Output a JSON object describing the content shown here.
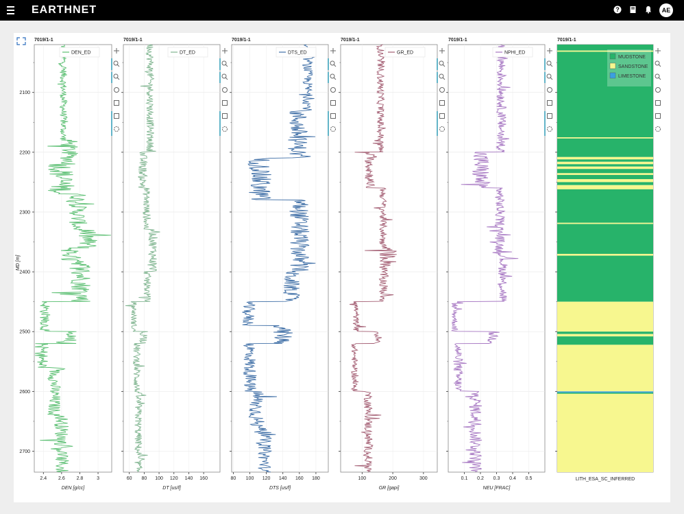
{
  "app": {
    "brand": "EARTHNET",
    "avatar_initials": "AE",
    "icons": [
      "menu-icon",
      "help-icon",
      "book-icon",
      "bell-icon"
    ]
  },
  "colors": {
    "den": "#5bbf72",
    "dt": "#7fb48f",
    "dts": "#3e6ea6",
    "gr": "#a35d72",
    "nphi": "#a676c2",
    "mudstone": "#27b36a",
    "sandstone": "#f7f78f",
    "limestone": "#3aa0e0",
    "toolbar_accent": "#2d9bb5"
  },
  "chart_data": [
    {
      "type": "line",
      "well": "7019/1-1",
      "series": [
        {
          "name": "DEN_ED"
        }
      ],
      "xlabel": "DEN [g/cc]",
      "ylabel": "MD [m]",
      "xlim": [
        2.3,
        3.15
      ],
      "xticks": [
        "2.4",
        "2.6",
        "2.8",
        "3"
      ],
      "ylim": [
        2020,
        2735
      ],
      "yticks": [
        "2100",
        "2200",
        "2300",
        "2400",
        "2500",
        "2600",
        "2700"
      ],
      "zones": [
        [
          2020,
          2180,
          2.62,
          0.04
        ],
        [
          2180,
          2220,
          2.68,
          0.1
        ],
        [
          2220,
          2270,
          2.6,
          0.15
        ],
        [
          2270,
          2330,
          2.78,
          0.1
        ],
        [
          2330,
          2360,
          2.88,
          0.12
        ],
        [
          2360,
          2380,
          2.7,
          0.12
        ],
        [
          2380,
          2450,
          2.82,
          0.12
        ],
        [
          2450,
          2500,
          2.42,
          0.06
        ],
        [
          2500,
          2520,
          2.65,
          0.12
        ],
        [
          2520,
          2560,
          2.38,
          0.08
        ],
        [
          2560,
          2640,
          2.52,
          0.07
        ],
        [
          2640,
          2735,
          2.6,
          0.08
        ]
      ]
    },
    {
      "type": "line",
      "well": "7019/1-1",
      "series": [
        {
          "name": "DT_ED"
        }
      ],
      "xlabel": "DT [us/f]",
      "ylabel": "",
      "xlim": [
        52,
        182
      ],
      "xticks": [
        "60",
        "80",
        "100",
        "120",
        "140",
        "160"
      ],
      "ylim": [
        2020,
        2735
      ],
      "zones": [
        [
          2020,
          2200,
          88,
          5
        ],
        [
          2200,
          2260,
          78,
          6
        ],
        [
          2260,
          2330,
          83,
          5
        ],
        [
          2330,
          2400,
          92,
          6
        ],
        [
          2400,
          2450,
          84,
          5
        ],
        [
          2450,
          2500,
          66,
          4
        ],
        [
          2500,
          2520,
          80,
          6
        ],
        [
          2520,
          2600,
          70,
          5
        ],
        [
          2600,
          2735,
          72,
          5
        ]
      ]
    },
    {
      "type": "line",
      "well": "7019/1-1",
      "series": [
        {
          "name": "DTS_ED"
        }
      ],
      "xlabel": "DTS [us/f]",
      "ylabel": "",
      "xlim": [
        78,
        195
      ],
      "xticks": [
        "80",
        "100",
        "120",
        "140",
        "160",
        "180"
      ],
      "ylim": [
        2020,
        2735
      ],
      "zones": [
        [
          2020,
          2130,
          170,
          6
        ],
        [
          2130,
          2210,
          158,
          12
        ],
        [
          2210,
          2280,
          112,
          14
        ],
        [
          2280,
          2400,
          160,
          12
        ],
        [
          2400,
          2450,
          150,
          10
        ],
        [
          2450,
          2490,
          98,
          8
        ],
        [
          2490,
          2520,
          140,
          12
        ],
        [
          2520,
          2600,
          100,
          8
        ],
        [
          2600,
          2660,
          108,
          10
        ],
        [
          2660,
          2735,
          118,
          8
        ]
      ]
    },
    {
      "type": "line",
      "well": "7019/1-1",
      "series": [
        {
          "name": "GR_ED"
        }
      ],
      "xlabel": "GR [gapi]",
      "ylabel": "",
      "xlim": [
        30,
        345
      ],
      "xticks": [
        "100",
        "200",
        "300"
      ],
      "ylim": [
        2020,
        2735
      ],
      "zones": [
        [
          2020,
          2200,
          160,
          12
        ],
        [
          2200,
          2260,
          125,
          16
        ],
        [
          2260,
          2360,
          168,
          12
        ],
        [
          2360,
          2390,
          185,
          30
        ],
        [
          2390,
          2450,
          170,
          15
        ],
        [
          2450,
          2500,
          80,
          10
        ],
        [
          2500,
          2520,
          150,
          15
        ],
        [
          2520,
          2600,
          75,
          10
        ],
        [
          2600,
          2735,
          120,
          14
        ]
      ]
    },
    {
      "type": "line",
      "well": "7019/1-1",
      "series": [
        {
          "name": "NPHI_ED"
        }
      ],
      "xlabel": "NEU [FRAC]",
      "ylabel": "",
      "xlim": [
        0,
        0.6
      ],
      "xticks": [
        "0.1",
        "0.2",
        "0.3",
        "0.4",
        "0.5"
      ],
      "ylim": [
        2020,
        2735
      ],
      "zones": [
        [
          2020,
          2200,
          0.33,
          0.03
        ],
        [
          2200,
          2260,
          0.2,
          0.06
        ],
        [
          2260,
          2370,
          0.32,
          0.03
        ],
        [
          2370,
          2450,
          0.34,
          0.03
        ],
        [
          2450,
          2500,
          0.04,
          0.02
        ],
        [
          2500,
          2520,
          0.28,
          0.04
        ],
        [
          2520,
          2600,
          0.06,
          0.03
        ],
        [
          2600,
          2735,
          0.17,
          0.04
        ]
      ]
    },
    {
      "type": "heatmap",
      "well": "7019/1-1",
      "xlabel": "LITH_ESA_SC_INFERRED",
      "ylabel": "",
      "ylim": [
        2020,
        2735
      ],
      "legend": [
        "MUDSTONE",
        "SANDSTONE",
        "LIMESTONE"
      ],
      "intervals": [
        [
          2020,
          2030,
          "M"
        ],
        [
          2030,
          2032,
          "S"
        ],
        [
          2032,
          2175,
          "M"
        ],
        [
          2175,
          2177,
          "S"
        ],
        [
          2177,
          2208,
          "M"
        ],
        [
          2208,
          2212,
          "S"
        ],
        [
          2212,
          2216,
          "M"
        ],
        [
          2216,
          2220,
          "S"
        ],
        [
          2220,
          2224,
          "M"
        ],
        [
          2224,
          2228,
          "S"
        ],
        [
          2228,
          2235,
          "M"
        ],
        [
          2235,
          2238,
          "S"
        ],
        [
          2238,
          2245,
          "M"
        ],
        [
          2245,
          2250,
          "S"
        ],
        [
          2250,
          2255,
          "M"
        ],
        [
          2255,
          2262,
          "S"
        ],
        [
          2262,
          2318,
          "M"
        ],
        [
          2318,
          2320,
          "S"
        ],
        [
          2320,
          2370,
          "M"
        ],
        [
          2370,
          2373,
          "S"
        ],
        [
          2373,
          2450,
          "M"
        ],
        [
          2450,
          2500,
          "S"
        ],
        [
          2500,
          2504,
          "M"
        ],
        [
          2504,
          2508,
          "S"
        ],
        [
          2508,
          2522,
          "M"
        ],
        [
          2522,
          2600,
          "S"
        ],
        [
          2600,
          2602,
          "L"
        ],
        [
          2602,
          2604,
          "M"
        ],
        [
          2604,
          2735,
          "S"
        ]
      ]
    }
  ]
}
